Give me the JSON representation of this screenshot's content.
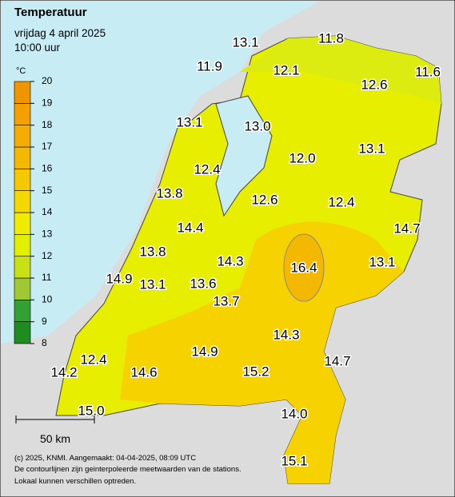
{
  "header": {
    "title": "Temperatuur",
    "date": "vrijdag 4 april 2025",
    "time": "10:00 uur"
  },
  "legend": {
    "unit": "°C",
    "ticks": [
      8,
      9,
      10,
      11,
      12,
      13,
      14,
      15,
      16,
      17,
      18,
      19,
      20
    ],
    "colors": [
      "#1e8c1e",
      "#32a032",
      "#a0c832",
      "#c8e014",
      "#e1f000",
      "#f0ec00",
      "#f5d800",
      "#f5c800",
      "#f5b800",
      "#f5ac00",
      "#f5a000",
      "#f09400"
    ]
  },
  "stations": [
    "13.1",
    "11.8",
    "11.9",
    "12.1",
    "11.6",
    "12.6",
    "13.1",
    "13.0",
    "12.0",
    "13.1",
    "12.4",
    "13.8",
    "12.6",
    "12.4",
    "14.7",
    "14.4",
    "13.8",
    "14.3",
    "16.4",
    "13.1",
    "14.9",
    "13.1",
    "13.6",
    "13.7",
    "14.3",
    "12.4",
    "14.9",
    "14.7",
    "14.2",
    "14.6",
    "15.2",
    "15.0",
    "14.0",
    "15.1"
  ],
  "scale": "50 km",
  "footer": [
    "(c) 2025, KNMI. Aangemaakt: 04-04-2025, 08:09 UTC",
    "De contourlijnen zijn geinterpoleerde meetwaarden van de stations.",
    "Lokaal kunnen verschillen optreden."
  ]
}
